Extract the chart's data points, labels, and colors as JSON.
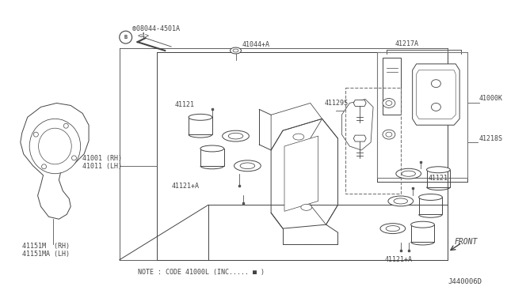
{
  "bg_color": "#ffffff",
  "line_color": "#333333",
  "diagram_code": "J440006D",
  "note_text": "NOTE : CODE 41000L (INC..... ■ )",
  "front_label": "FRONT"
}
